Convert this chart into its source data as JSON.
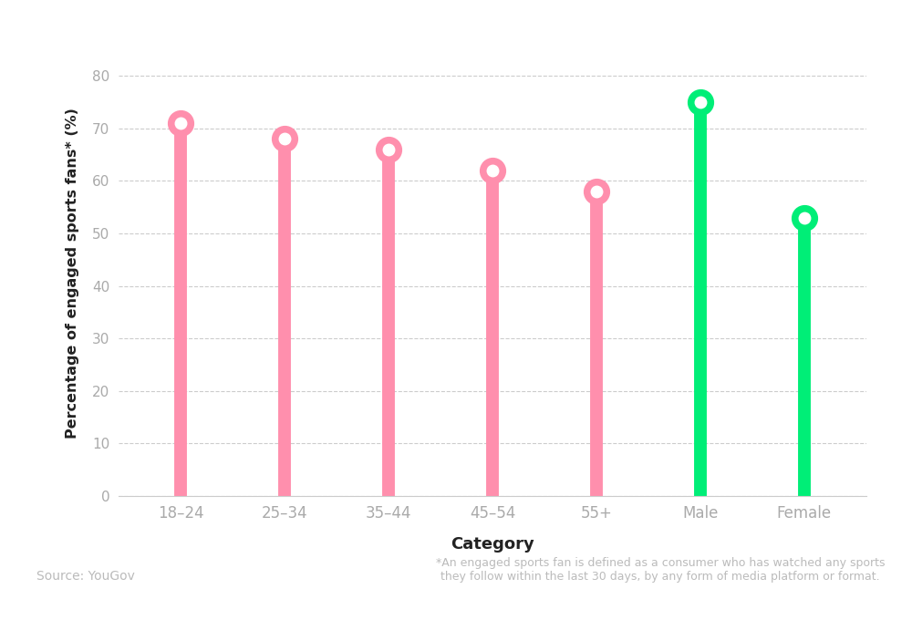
{
  "categories": [
    "18–24",
    "25–34",
    "35–44",
    "45–54",
    "55+",
    "Male",
    "Female"
  ],
  "values": [
    71,
    68,
    66,
    62,
    58,
    75,
    53
  ],
  "colors": [
    "#FF8FAD",
    "#FF8FAD",
    "#FF8FAD",
    "#FF8FAD",
    "#FF8FAD",
    "#00EE77",
    "#00EE77"
  ],
  "xlabel": "Category",
  "ylabel": "Percentage of engaged sports fans* (%)",
  "ylim": [
    0,
    85
  ],
  "yticks": [
    0,
    10,
    20,
    30,
    40,
    50,
    60,
    70,
    80
  ],
  "source_text": "Source: YouGov",
  "footnote_text": "*An engaged sports fan is defined as a consumer who has watched any sports\nthey follow within the last 30 days, by any form of media platform or format.",
  "line_width": 10,
  "marker_size": 20,
  "marker_inner_size": 9,
  "background_color": "#FFFFFF",
  "grid_color": "#CCCCCC",
  "tick_color": "#AAAAAA",
  "label_color": "#222222",
  "annotation_color": "#BBBBBB"
}
